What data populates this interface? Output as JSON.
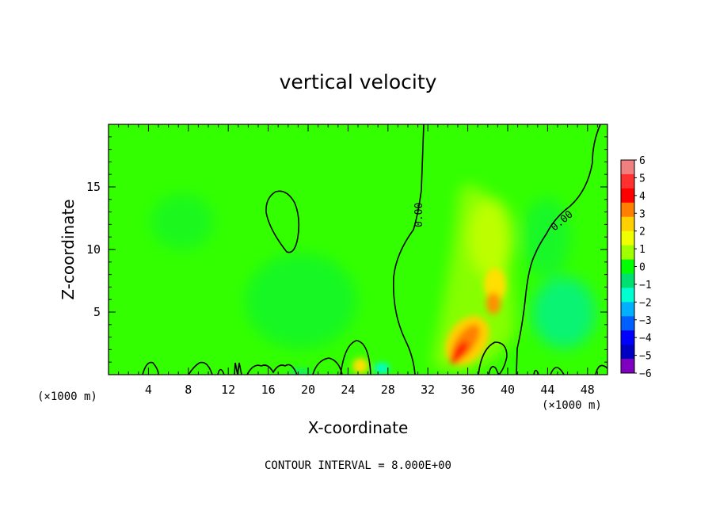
{
  "chart_data": {
    "type": "heatmap",
    "title": "vertical velocity",
    "xlabel": "X-coordinate",
    "ylabel": "Z-coordinate",
    "x_unit_left": "(×1000 m)",
    "x_unit_right": "(×1000 m)",
    "xlim": [
      0,
      50
    ],
    "ylim": [
      0,
      20
    ],
    "x_ticks": [
      "4",
      "8",
      "12",
      "16",
      "20",
      "24",
      "28",
      "32",
      "36",
      "40",
      "44",
      "48"
    ],
    "y_ticks": [
      "5",
      "10",
      "15"
    ],
    "colorbar": {
      "levels": [
        "6",
        "5",
        "4",
        "3",
        "2",
        "1",
        "0",
        "−1",
        "−2",
        "−3",
        "−4",
        "−5",
        "−6"
      ],
      "colors": [
        "#f08080",
        "#ff3030",
        "#ff0000",
        "#ff8000",
        "#ffd000",
        "#f0ff00",
        "#a0ff00",
        "#00ff00",
        "#00e070",
        "#00ffd0",
        "#00b0ff",
        "#0060ff",
        "#0000ff",
        "#0000c0",
        "#8000c0"
      ]
    },
    "contour_labels": [
      "0.00",
      "0.00"
    ],
    "features": [
      {
        "name": "updraft-core-low",
        "x": 34.5,
        "z": 2.2,
        "value": 5
      },
      {
        "name": "updraft-core-mid",
        "x": 38.3,
        "z": 5.8,
        "value": 3
      },
      {
        "name": "updraft-plume-upper",
        "x": 37.5,
        "z": 10.5,
        "value": 1.5
      },
      {
        "name": "downdraft-right",
        "x": 45.5,
        "z": 4.5,
        "value": -1.5
      },
      {
        "name": "downdraft-left",
        "x": 20,
        "z": 5.5,
        "value": -0.8
      },
      {
        "name": "surface-updraft",
        "x": 25.5,
        "z": 0.7,
        "value": 2
      },
      {
        "name": "surface-downdraft",
        "x": 27.5,
        "z": 0.6,
        "value": -2
      }
    ],
    "colors": {
      "background_field": "#00ff00"
    },
    "footer": "CONTOUR INTERVAL = 8.000E+00"
  }
}
